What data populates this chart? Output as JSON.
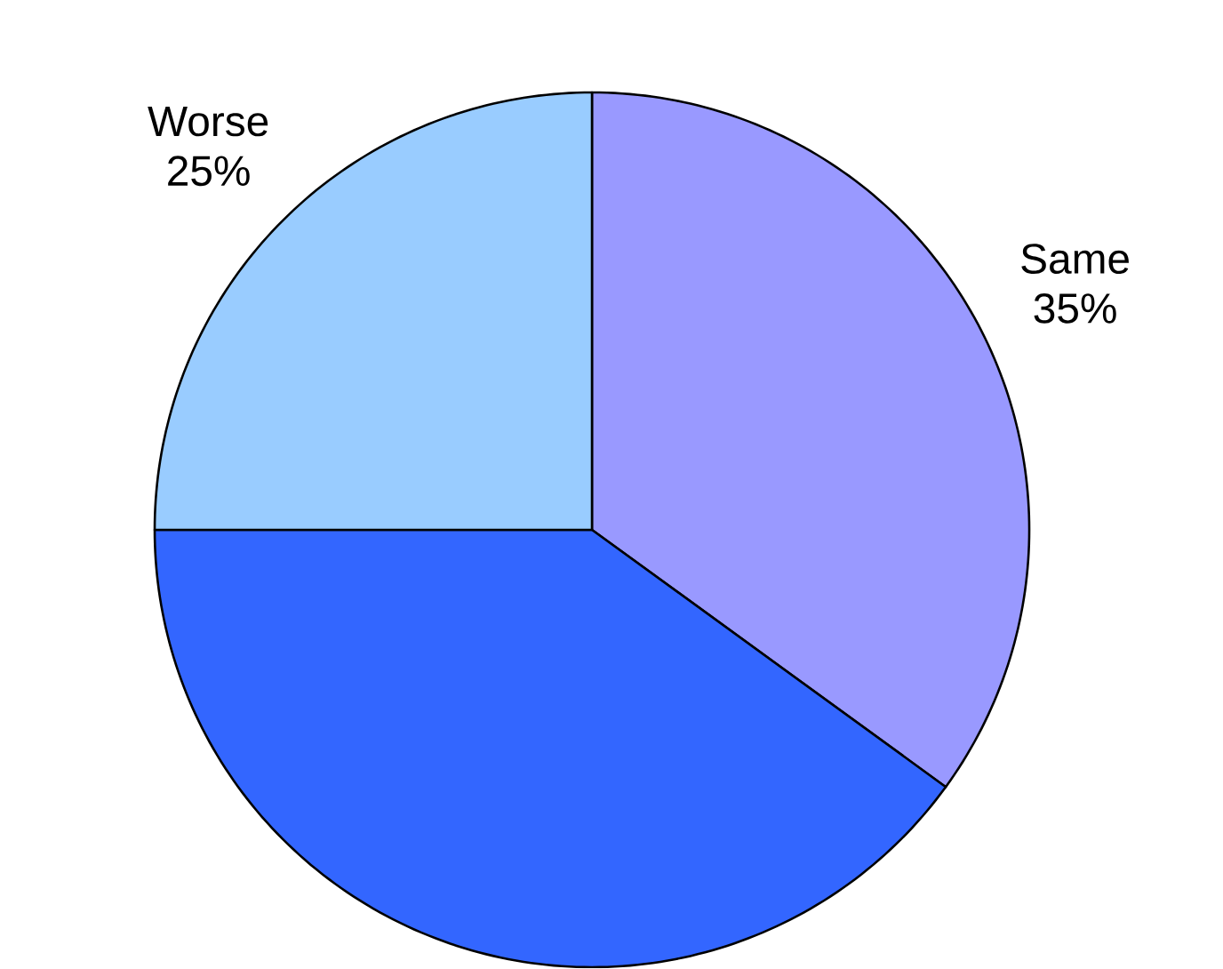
{
  "chart_data": {
    "type": "pie",
    "categories": [
      "Same",
      null,
      "Worse"
    ],
    "values": [
      35,
      40,
      25
    ],
    "colors": [
      "#9999ff",
      "#3366ff",
      "#99ccff"
    ],
    "value_labels": [
      "35%",
      null,
      "25%"
    ]
  }
}
